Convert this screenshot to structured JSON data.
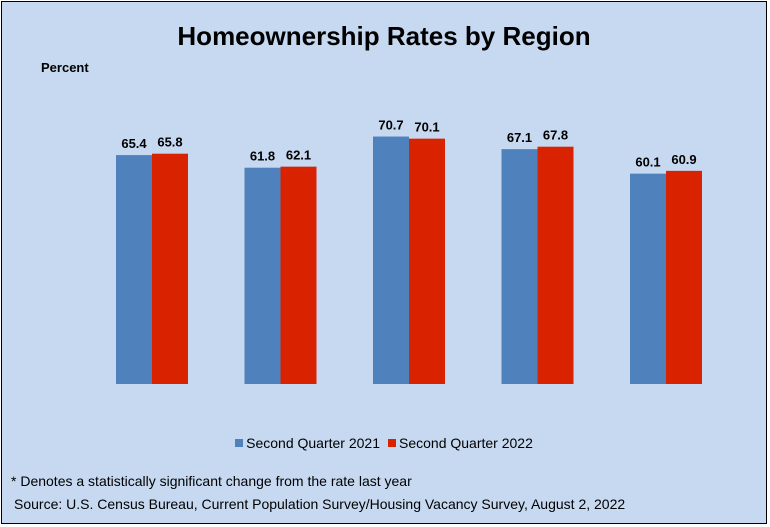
{
  "colors": {
    "background": "#c6d9f1",
    "series_2021": "#4f81bd",
    "series_2022": "#d92300"
  },
  "chart_data": {
    "type": "bar",
    "title": "Homeownership Rates by Region",
    "ylabel": "Percent",
    "xlabel": "",
    "categories": [
      "",
      "",
      "",
      "",
      ""
    ],
    "series": [
      {
        "name": "Second Quarter 2021",
        "values": [
          65.4,
          61.8,
          70.7,
          67.1,
          60.1
        ]
      },
      {
        "name": "Second Quarter 2022",
        "values": [
          65.8,
          62.1,
          70.1,
          67.8,
          60.9
        ]
      }
    ],
    "ylim": [
      0,
      100
    ],
    "data_labels": true,
    "grid": false,
    "legend_position": "bottom"
  },
  "notes": {
    "footnote": "* Denotes a statistically significant change from the rate last year",
    "source": "Source: U.S. Census Bureau, Current Population Survey/Housing Vacancy Survey, August 2, 2022"
  }
}
